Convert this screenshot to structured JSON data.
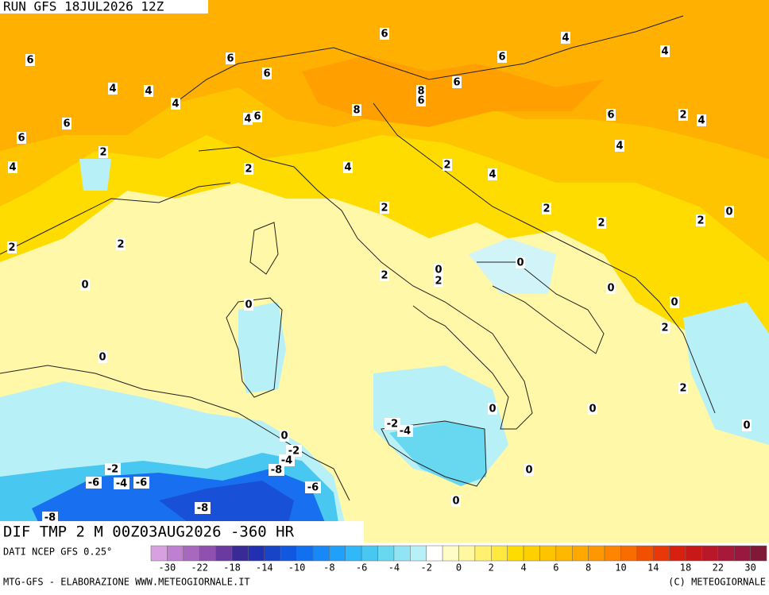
{
  "header": {
    "run": "RUN GFS 18JUL2026 12Z"
  },
  "map": {
    "title": "DIF TMP 2 M 00Z03AUG2026 -360 HR",
    "contour_labels": [
      6,
      4,
      6,
      6,
      6,
      4,
      6,
      4,
      4,
      6,
      8,
      6,
      4,
      8,
      4,
      6,
      6,
      6,
      2,
      4,
      6,
      4,
      2,
      4,
      2,
      4,
      2,
      4,
      2,
      2,
      0,
      2,
      2,
      2,
      2,
      0,
      0,
      2,
      2,
      0,
      0,
      0,
      0,
      2,
      0,
      2,
      0,
      0,
      -2,
      -4,
      0,
      0,
      -2,
      -4,
      -2,
      -8,
      -6,
      -4,
      -6,
      -6,
      0,
      -8,
      0,
      -8
    ]
  },
  "colorbar": {
    "source": "DATI NCEP GFS 0.25°",
    "labels": [
      -30,
      -22,
      -18,
      -14,
      -10,
      -8,
      -6,
      -4,
      -2,
      0,
      2,
      4,
      6,
      8,
      10,
      14,
      18,
      22,
      30
    ],
    "colors": [
      "#d8a0e0",
      "#c080d0",
      "#a868c0",
      "#9050b0",
      "#6a3aa0",
      "#3a2a98",
      "#2030b0",
      "#1844c8",
      "#1058e0",
      "#1070f0",
      "#1888f8",
      "#20a0f8",
      "#30b8f8",
      "#48c8f0",
      "#68d8f0",
      "#90e4f4",
      "#b8f0f8",
      "#ffffff",
      "#fffcc8",
      "#fff8a0",
      "#fff070",
      "#ffe840",
      "#ffdc00",
      "#ffd000",
      "#ffc400",
      "#ffb800",
      "#ffa800",
      "#ff9800",
      "#ff8400",
      "#f86c00",
      "#f05000",
      "#e83808",
      "#d82010",
      "#c81818",
      "#b81828",
      "#a81838",
      "#981840",
      "#801838"
    ]
  },
  "footer": {
    "left": "MTG-GFS - ELABORAZIONE WWW.METEOGIORNALE.IT",
    "right": "(C) METEOGIORNALE"
  }
}
